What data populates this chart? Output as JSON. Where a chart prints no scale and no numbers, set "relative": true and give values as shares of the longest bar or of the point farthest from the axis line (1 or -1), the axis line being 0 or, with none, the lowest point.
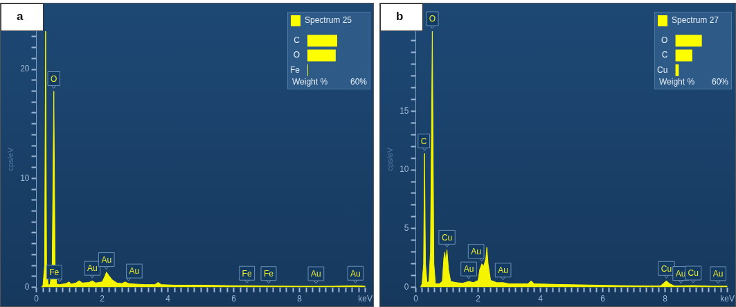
{
  "chart_data": [
    {
      "type": "area",
      "title": "a",
      "ylabel": "cps/eV",
      "grid": false,
      "legend": false,
      "xlim": [
        0,
        10
      ],
      "ylim": [
        0,
        23.5
      ],
      "xticks": [
        0,
        {
          "value": 0.2,
          "label": null
        },
        {
          "value": 0.4,
          "label": null
        },
        {
          "value": 0.6,
          "label": null
        },
        {
          "value": 0.8,
          "label": null
        },
        {
          "value": 1,
          "label": null
        },
        {
          "value": 1.2,
          "label": null
        },
        {
          "value": 1.4,
          "label": null
        },
        {
          "value": 1.6,
          "label": null
        },
        {
          "value": 1.8,
          "label": null
        },
        2,
        {
          "value": 2.2,
          "label": null
        },
        {
          "value": 2.4,
          "label": null
        },
        {
          "value": 2.6,
          "label": null
        },
        {
          "value": 2.8,
          "label": null
        },
        {
          "value": 3,
          "label": null
        },
        {
          "value": 3.2,
          "label": null
        },
        {
          "value": 3.4,
          "label": null
        },
        {
          "value": 3.6,
          "label": null
        },
        {
          "value": 3.8,
          "label": null
        },
        4,
        {
          "value": 4.2,
          "label": null
        },
        {
          "value": 4.4,
          "label": null
        },
        {
          "value": 4.6,
          "label": null
        },
        {
          "value": 4.8,
          "label": null
        },
        {
          "value": 5,
          "label": null
        },
        {
          "value": 5.2,
          "label": null
        },
        {
          "value": 5.4,
          "label": null
        },
        {
          "value": 5.6,
          "label": null
        },
        {
          "value": 5.8,
          "label": null
        },
        6,
        {
          "value": 6.2,
          "label": null
        },
        {
          "value": 6.4,
          "label": null
        },
        {
          "value": 6.6,
          "label": null
        },
        {
          "value": 6.8,
          "label": null
        },
        {
          "value": 7,
          "label": null
        },
        {
          "value": 7.2,
          "label": null
        },
        {
          "value": 7.4,
          "label": null
        },
        {
          "value": 7.6,
          "label": null
        },
        {
          "value": 7.8,
          "label": null
        },
        8,
        {
          "value": 8.2,
          "label": null
        },
        {
          "value": 8.4,
          "label": null
        },
        {
          "value": 8.6,
          "label": null
        },
        {
          "value": 8.8,
          "label": null
        },
        {
          "value": 9,
          "label": null
        },
        {
          "value": 9.2,
          "label": null
        },
        {
          "value": 9.4,
          "label": null
        },
        {
          "value": 9.6,
          "label": null
        },
        {
          "value": 9.8,
          "label": null
        },
        {
          "value": 10,
          "label": "keV"
        }
      ],
      "yticks": [
        0,
        {
          "value": 1,
          "label": null
        },
        {
          "value": 2,
          "label": null
        },
        {
          "value": 3,
          "label": null
        },
        {
          "value": 4,
          "label": null
        },
        {
          "value": 5,
          "label": null
        },
        {
          "value": 6,
          "label": null
        },
        {
          "value": 7,
          "label": null
        },
        {
          "value": 8,
          "label": null
        },
        {
          "value": 9,
          "label": null
        },
        10,
        {
          "value": 11,
          "label": null
        },
        {
          "value": 12,
          "label": null
        },
        {
          "value": 13,
          "label": null
        },
        {
          "value": 14,
          "label": null
        },
        {
          "value": 15,
          "label": null
        },
        {
          "value": 16,
          "label": null
        },
        {
          "value": 17,
          "label": null
        },
        {
          "value": 18,
          "label": null
        },
        {
          "value": 19,
          "label": null
        },
        20,
        {
          "value": 21,
          "label": null
        },
        {
          "value": 22,
          "label": null
        },
        {
          "value": 23,
          "label": null
        }
      ],
      "series": [
        {
          "color": "#f5f500",
          "x": [
            0.15,
            0.2,
            0.25,
            0.28,
            0.31,
            0.36,
            0.42,
            0.48,
            0.53,
            0.57,
            0.62,
            0.7,
            0.8,
            0.9,
            1.0,
            1.05,
            1.2,
            1.3,
            1.4,
            1.6,
            1.7,
            1.8,
            2.0,
            2.08,
            2.13,
            2.2,
            2.3,
            2.45,
            2.6,
            2.7,
            2.8,
            3.0,
            3.3,
            3.6,
            3.7,
            3.8,
            4.2,
            5,
            6,
            6.4,
            7,
            8,
            9,
            9.7,
            10
          ],
          "values": [
            0,
            0.2,
            2,
            23.5,
            2,
            0.2,
            0.3,
            2,
            18,
            2,
            0.3,
            0.25,
            0.3,
            0.35,
            0.5,
            0.3,
            0.4,
            0.6,
            0.4,
            0.45,
            0.6,
            0.4,
            0.5,
            1.0,
            1.4,
            1.1,
            0.7,
            0.4,
            0.35,
            0.5,
            0.35,
            0.3,
            0.25,
            0.25,
            0.45,
            0.25,
            0.2,
            0.2,
            0.15,
            0.15,
            0.12,
            0.1,
            0.1,
            0.15,
            0.1
          ]
        }
      ],
      "annotations": [
        {
          "text": "O",
          "x": 0.53,
          "y": 18
        },
        {
          "text": "Fe",
          "x": 0.71,
          "y": 0.25
        },
        {
          "text": "Au",
          "x": 1.7,
          "y": 0.6
        },
        {
          "text": "Au",
          "x": 2.13,
          "y": 1.4
        },
        {
          "text": "Au",
          "x": 2.8,
          "y": 0.35
        },
        {
          "text": "Fe",
          "x": 6.4,
          "y": 0.15
        },
        {
          "text": "Fe",
          "x": 7.06,
          "y": 0.12
        },
        {
          "text": "Au",
          "x": 8.5,
          "y": 0.1
        },
        {
          "text": "Au",
          "x": 9.7,
          "y": 0.15
        }
      ]
    },
    {
      "type": "bar",
      "orientation": "horizontal",
      "relative": true,
      "legend": "top left",
      "xlabel": "Weight %",
      "categories": [
        "C",
        "O",
        "Fe"
      ],
      "series": [
        {
          "name": "Spectrum 25",
          "color": "#ffff00",
          "values": [
            1,
            0.95,
            0.02
          ]
        }
      ],
      "annotations": [
        "60%"
      ]
    },
    {
      "type": "area",
      "title": "b",
      "ylabel": "cps/eV",
      "grid": false,
      "legend": false,
      "xlim": [
        0,
        10
      ],
      "ylim": [
        0,
        21.8
      ],
      "xticks": [
        0,
        {
          "value": 0.2,
          "label": null
        },
        {
          "value": 0.4,
          "label": null
        },
        {
          "value": 0.6,
          "label": null
        },
        {
          "value": 0.8,
          "label": null
        },
        {
          "value": 1,
          "label": null
        },
        {
          "value": 1.2,
          "label": null
        },
        {
          "value": 1.4,
          "label": null
        },
        {
          "value": 1.6,
          "label": null
        },
        {
          "value": 1.8,
          "label": null
        },
        2,
        {
          "value": 2.2,
          "label": null
        },
        {
          "value": 2.4,
          "label": null
        },
        {
          "value": 2.6,
          "label": null
        },
        {
          "value": 2.8,
          "label": null
        },
        {
          "value": 3,
          "label": null
        },
        {
          "value": 3.2,
          "label": null
        },
        {
          "value": 3.4,
          "label": null
        },
        {
          "value": 3.6,
          "label": null
        },
        {
          "value": 3.8,
          "label": null
        },
        4,
        {
          "value": 4.2,
          "label": null
        },
        {
          "value": 4.4,
          "label": null
        },
        {
          "value": 4.6,
          "label": null
        },
        {
          "value": 4.8,
          "label": null
        },
        {
          "value": 5,
          "label": null
        },
        {
          "value": 5.2,
          "label": null
        },
        {
          "value": 5.4,
          "label": null
        },
        {
          "value": 5.6,
          "label": null
        },
        {
          "value": 5.8,
          "label": null
        },
        6,
        {
          "value": 6.2,
          "label": null
        },
        {
          "value": 6.4,
          "label": null
        },
        {
          "value": 6.6,
          "label": null
        },
        {
          "value": 6.8,
          "label": null
        },
        {
          "value": 7,
          "label": null
        },
        {
          "value": 7.2,
          "label": null
        },
        {
          "value": 7.4,
          "label": null
        },
        {
          "value": 7.6,
          "label": null
        },
        {
          "value": 7.8,
          "label": null
        },
        8,
        {
          "value": 8.2,
          "label": null
        },
        {
          "value": 8.4,
          "label": null
        },
        {
          "value": 8.6,
          "label": null
        },
        {
          "value": 8.8,
          "label": null
        },
        {
          "value": 9,
          "label": null
        },
        {
          "value": 9.2,
          "label": null
        },
        {
          "value": 9.4,
          "label": null
        },
        {
          "value": 9.6,
          "label": null
        },
        {
          "value": 9.8,
          "label": null
        },
        {
          "value": 10,
          "label": "keV"
        }
      ],
      "yticks": [
        0,
        {
          "value": 1,
          "label": null
        },
        {
          "value": 2,
          "label": null
        },
        {
          "value": 3,
          "label": null
        },
        {
          "value": 4,
          "label": null
        },
        5,
        {
          "value": 6,
          "label": null
        },
        {
          "value": 7,
          "label": null
        },
        {
          "value": 8,
          "label": null
        },
        {
          "value": 9,
          "label": null
        },
        10,
        {
          "value": 11,
          "label": null
        },
        {
          "value": 12,
          "label": null
        },
        {
          "value": 13,
          "label": null
        },
        {
          "value": 14,
          "label": null
        },
        15,
        {
          "value": 16,
          "label": null
        },
        {
          "value": 17,
          "label": null
        },
        {
          "value": 18,
          "label": null
        },
        {
          "value": 19,
          "label": null
        },
        {
          "value": 20,
          "label": null
        },
        {
          "value": 21,
          "label": null
        }
      ],
      "series": [
        {
          "color": "#f5f500",
          "x": [
            0.15,
            0.2,
            0.25,
            0.28,
            0.31,
            0.36,
            0.42,
            0.47,
            0.53,
            0.58,
            0.63,
            0.75,
            0.85,
            0.9,
            0.93,
            0.96,
            1.0,
            1.05,
            1.12,
            1.3,
            1.5,
            1.7,
            1.85,
            2.0,
            2.05,
            2.12,
            2.18,
            2.25,
            2.28,
            2.32,
            2.4,
            2.6,
            2.8,
            3.0,
            3.4,
            3.6,
            3.7,
            3.8,
            4.5,
            5.5,
            6.5,
            7.5,
            7.85,
            7.95,
            8.04,
            8.15,
            8.3,
            8.9,
            9.5,
            10
          ],
          "values": [
            0,
            0.3,
            2,
            11.4,
            2,
            0.4,
            0.5,
            3,
            21.8,
            2,
            0.3,
            0.3,
            0.5,
            2.5,
            3.0,
            2.2,
            3.2,
            1.5,
            0.5,
            0.4,
            0.35,
            0.5,
            0.4,
            0.6,
            1.5,
            2.0,
            1.8,
            2.5,
            3.4,
            2.0,
            0.6,
            0.4,
            0.4,
            0.3,
            0.3,
            0.3,
            0.55,
            0.3,
            0.25,
            0.2,
            0.15,
            0.12,
            0.12,
            0.35,
            0.55,
            0.3,
            0.12,
            0.15,
            0.1,
            0.1
          ]
        }
      ],
      "annotations": [
        {
          "text": "C",
          "x": 0.28,
          "y": 11.4
        },
        {
          "text": "O",
          "x": 0.53,
          "y": 21.8
        },
        {
          "text": "Cu",
          "x": 1.0,
          "y": 3.2
        },
        {
          "text": "Au",
          "x": 1.7,
          "y": 0.5
        },
        {
          "text": "Au",
          "x": 2.12,
          "y": 2.0
        },
        {
          "text": "Au",
          "x": 2.8,
          "y": 0.4
        },
        {
          "text": "Cu",
          "x": 8.04,
          "y": 0.55
        },
        {
          "text": "Au",
          "x": 8.5,
          "y": 0.12
        },
        {
          "text": "Cu",
          "x": 8.9,
          "y": 0.15
        },
        {
          "text": "Au",
          "x": 9.7,
          "y": 0.1
        }
      ]
    },
    {
      "type": "bar",
      "orientation": "horizontal",
      "relative": true,
      "legend": "top left",
      "xlabel": "Weight %",
      "categories": [
        "O",
        "C",
        "Cu"
      ],
      "series": [
        {
          "name": "Spectrum 27",
          "color": "#ffff00",
          "values": [
            1,
            0.64,
            0.13
          ]
        }
      ],
      "annotations": [
        "60%"
      ]
    }
  ]
}
